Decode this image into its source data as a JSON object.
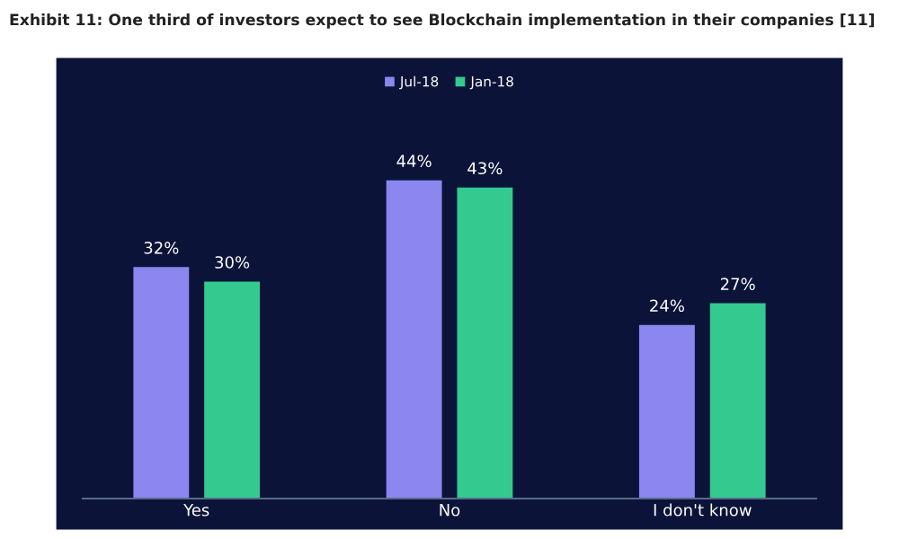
{
  "chart_data": {
    "type": "bar",
    "title": "Exhibit 11: One third of investors expect to see Blockchain implementation in their companies [11]",
    "categories": [
      "Yes",
      "No",
      "I don't know"
    ],
    "series": [
      {
        "name": "Jul-18",
        "color": "#8c86f0",
        "values": [
          32,
          44,
          24
        ],
        "value_labels": [
          "32%",
          "44%",
          "24%"
        ]
      },
      {
        "name": "Jan-18",
        "color": "#33c98f",
        "values": [
          30,
          43,
          27
        ],
        "value_labels": [
          "30%",
          "43%",
          "27%"
        ]
      }
    ],
    "legend": "top",
    "grid": false
  }
}
